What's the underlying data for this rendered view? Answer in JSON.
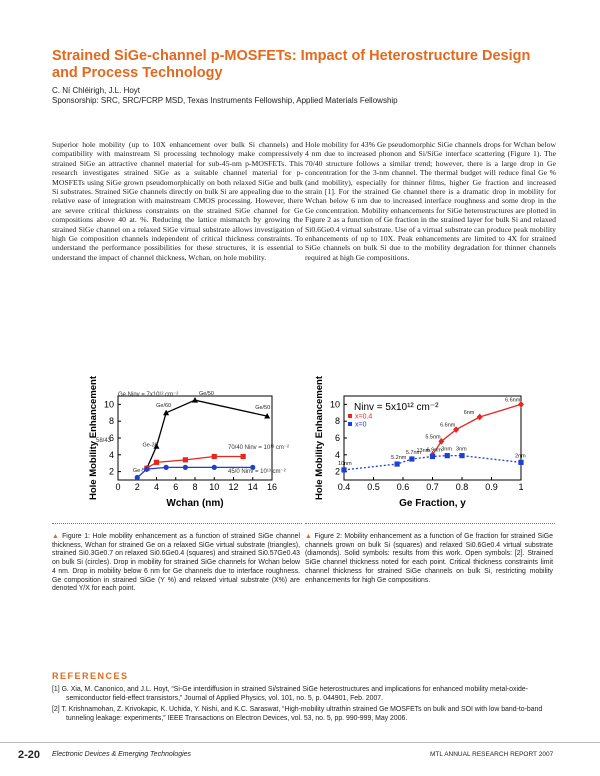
{
  "header": {
    "title": "Strained SiGe-channel p-MOSFETs: Impact of Heterostructure Design and Process Technology",
    "authors": "C. Ní Chléirigh, J.L. Hoyt",
    "sponsorship": "Sponsorship: SRC, SRC/FCRP MSD, Texas Instruments Fellowship, Applied Materials Fellowship"
  },
  "body": [
    "Superior hole mobility (up to 10X enhancement over bulk Si channels) and compatibility with mainstream Si processing technology make compressively strained SiGe an attractive channel material for sub-45-nm p-MOSFETs. This research investigates strained SiGe as a suitable channel material for p-MOSFETs using SiGe grown pseudomorphically on both relaxed SiGe and bulk Si substrates. Strained SiGe channels directly on bulk Si are appealing due to the relative ease of integration with mainstream CMOS processing. However, there are severe critical thickness constraints on the strained SiGe channel for Ge compositions above 40 at. %. Reducing the lattice mismatch by growing the strained SiGe channel on a relaxed SiGe virtual substrate allows investigation of high Ge composition channels independent of critical thickness constraints. To understand the performance possibilities for these structures, it is essential to understand the impact of channel thickness, Wchan, on hole mobility.",
    "Hole mobility for 43% Ge pseudomorphic SiGe channels drops for Wchan below 4 nm due to increased phonon and Si/SiGe interface scattering (Figure 1). The 70/40 structure follows a similar trend; however, there is a large drop in Ge concentration for the 3-nm channel. The thermal budget will reduce final Ge % (and mobility), especially for thinner films, higher Ge fraction and increased strain [1]. For the strained Ge channel there is a dramatic drop in mobility for Wchan below 6 nm due to increased interface roughness and some drop in the Ge concentration. Mobility enhancements for SiGe heterostructures are plotted in Figure 2 as a function of Ge fraction in the strained layer for bulk Si and relaxed Si0.6Ge0.4 virtual substrate. Use of a virtual substrate can produce peak mobility enhancements of up to 10X. Peak enhancements are limited to 4X for strained SiGe channels on bulk Si due to the mobility degradation for thinner channels required at high Ge compositions."
  ],
  "chart_data": [
    {
      "type": "line",
      "xlabel": "Wchan (nm)",
      "ylabel": "Hole Mobility Enhancement",
      "xlim": [
        0,
        16
      ],
      "xticks": [
        0,
        2,
        4,
        6,
        8,
        10,
        12,
        14,
        16
      ],
      "ylim": [
        1,
        11
      ],
      "yticks": [
        2,
        4,
        6,
        8,
        10
      ],
      "annotations": [
        "Ge Ninv = 7x10¹² cm⁻²",
        "70/40 Ninv = 10¹³ cm⁻²",
        "45/0 Ninv = 10¹³ cm⁻²",
        "58/43"
      ],
      "series": [
        {
          "color": "#000000",
          "marker": "triangle",
          "dashed": false,
          "x": [
            3,
            4,
            5,
            8,
            15.5
          ],
          "values": [
            2.4,
            5,
            9,
            10.5,
            8.6
          ],
          "point_labels": [
            "Ge-50",
            "Ge-30",
            "Ge/60",
            "Ge/50",
            "Ge/50"
          ]
        },
        {
          "color": "#e8261f",
          "marker": "square",
          "dashed": false,
          "x": [
            3,
            4,
            7,
            10,
            13
          ],
          "values": [
            2.4,
            3.1,
            3.4,
            3.8,
            3.8
          ]
        },
        {
          "color": "#1f3fcf",
          "marker": "circle",
          "dashed": false,
          "x": [
            2,
            3,
            5,
            7,
            10,
            14
          ],
          "values": [
            1.3,
            2.3,
            2.5,
            2.5,
            2.5,
            2.5
          ]
        }
      ]
    },
    {
      "type": "line",
      "xlabel": "Ge Fraction, y",
      "ylabel": "Hole Mobility Enhancement",
      "xlim": [
        0.4,
        1
      ],
      "xticks": [
        0.4,
        0.5,
        0.6,
        0.7,
        0.8,
        0.9,
        1
      ],
      "ylim": [
        1,
        11
      ],
      "yticks": [
        2,
        4,
        6,
        8,
        10
      ],
      "annotations": [
        "Ninv = 5x10¹² cm⁻²"
      ],
      "legend": "upper left",
      "series": [
        {
          "name": "x=0.4",
          "color": "#e8261f",
          "marker": "diamond",
          "dashed": false,
          "x": [
            0.7,
            0.73,
            0.78,
            0.86,
            1
          ],
          "values": [
            4,
            5.6,
            7,
            8.5,
            10
          ],
          "point_labels": [
            "13nm",
            "5.5nm",
            "6.6nm",
            "6nm",
            "6.6nm"
          ]
        },
        {
          "name": "x=0",
          "color": "#1f3fcf",
          "marker": "square",
          "dashed": true,
          "x": [
            0.4,
            0.58,
            0.63,
            0.7,
            0.75,
            0.8,
            1
          ],
          "values": [
            2.2,
            2.9,
            3.5,
            3.8,
            3.9,
            3.9,
            3.1
          ],
          "point_labels": [
            "10nm",
            "5.2nm",
            "5.7nm",
            "6.9nm",
            "3nm",
            "3nm",
            "2nm"
          ]
        }
      ]
    }
  ],
  "captions": [
    "Figure 1: Hole mobility enhancement as a function of strained SiGe channel thickness, Wchan for strained Ge on a relaxed SiGe virtual substrate (triangles), strained Si0.3Ge0.7 on relaxed Si0.6Ge0.4 (squares) and strained Si0.57Ge0.43 on bulk Si (circles). Drop in mobility for strained SiGe channels for Wchan below 4 nm. Drop in mobility below 6 nm for Ge channels due to interface roughness. Ge composition in strained SiGe (Y %) and relaxed virtual substrate (X%) are denoted Y/X for each point.",
    "Figure 2: Mobility enhancement as a function of Ge fraction for strained SiGe channels grown on bulk Si (squares) and relaxed Si0.6Ge0.4 virtual substrate (diamonds). Solid symbols: results from this work. Open symbols: [2]. Strained SiGe channel thickness noted for each point. Critical thickness constraints limit channel thickness for strained SiGe channels on bulk Si, restricting mobility enhancements for high Ge compositions."
  ],
  "references": {
    "heading": "REFERENCES",
    "items": [
      "[1]  G. Xia, M. Canonico, and J.L. Hoyt, “Si-Ge interdiffusion in strained Si/strained SiGe heterostructures and implications for enhanced mobility metal-oxide-semiconductor field-effect transistors,” Journal of Applied Physics, vol. 101, no. 5, p. 044901, Feb. 2007.",
      "[2]  T. Krishnamohan, Z. Krivokapic, K. Uchida, Y. Nishi, and K.C. Saraswat, “High-mobility ultrathin strained Ge MOSFETs on bulk and SOI with low band-to-band tunneling leakage: experiments,” IEEE Transactions on Electron Devices, vol. 53, no. 5, pp. 990-999, May 2006."
    ]
  },
  "footer": {
    "page": "2-20",
    "section": "Electronic Devices & Emerging Technologies",
    "report": "MTL ANNUAL RESEARCH REPORT 2007"
  }
}
